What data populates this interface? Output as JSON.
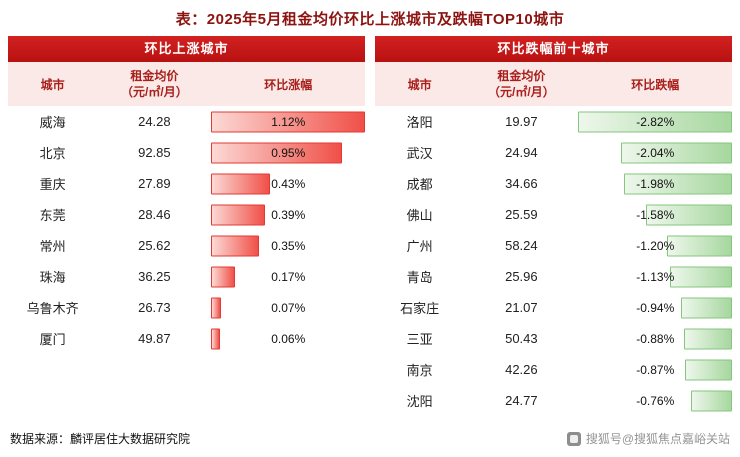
{
  "title": "表：2025年5月租金均价环比上涨城市及跌幅TOP10城市",
  "source": "数据来源：麟评居住大数据研究院",
  "footer_badge": "搜狐号@搜狐焦点嘉峪关站",
  "colors": {
    "title_color": "#8b1310",
    "band_red_top": "#d32121",
    "band_red_bottom": "#b81111",
    "header_pink": "#fbe9e7",
    "header_text": "#a8201c",
    "bar_red_light": "#fcd9d5",
    "bar_red": "#f05048",
    "bar_red_border": "#e23a32",
    "bar_green_light": "#eef7ec",
    "bar_green": "#a6d79e",
    "bar_green_border": "#86c57e"
  },
  "chart_data": [
    {
      "type": "table",
      "title": "环比上涨城市",
      "bar_direction": "positive",
      "columns": {
        "city": "城市",
        "price_line1": "租金均价",
        "price_line2": "（元/㎡/月）",
        "change": "环比涨幅"
      },
      "rows": [
        {
          "city": "威海",
          "price": "24.28",
          "change": "1.12%"
        },
        {
          "city": "北京",
          "price": "92.85",
          "change": "0.95%"
        },
        {
          "city": "重庆",
          "price": "27.89",
          "change": "0.43%"
        },
        {
          "city": "东莞",
          "price": "28.46",
          "change": "0.39%"
        },
        {
          "city": "常州",
          "price": "25.62",
          "change": "0.35%"
        },
        {
          "city": "珠海",
          "price": "36.25",
          "change": "0.17%"
        },
        {
          "city": "乌鲁木齐",
          "price": "26.73",
          "change": "0.07%"
        },
        {
          "city": "厦门",
          "price": "49.87",
          "change": "0.06%"
        }
      ]
    },
    {
      "type": "table",
      "title": "环比跌幅前十城市",
      "bar_direction": "negative",
      "columns": {
        "city": "城市",
        "price_line1": "租金均价",
        "price_line2": "（元/㎡/月）",
        "change": "环比跌幅"
      },
      "rows": [
        {
          "city": "洛阳",
          "price": "19.97",
          "change": "-2.82%"
        },
        {
          "city": "武汉",
          "price": "24.94",
          "change": "-2.04%"
        },
        {
          "city": "成都",
          "price": "34.66",
          "change": "-1.98%"
        },
        {
          "city": "佛山",
          "price": "25.59",
          "change": "-1.58%"
        },
        {
          "city": "广州",
          "price": "58.24",
          "change": "-1.20%"
        },
        {
          "city": "青岛",
          "price": "25.96",
          "change": "-1.13%"
        },
        {
          "city": "石家庄",
          "price": "21.07",
          "change": "-0.94%"
        },
        {
          "city": "三亚",
          "price": "50.43",
          "change": "-0.88%"
        },
        {
          "city": "南京",
          "price": "42.26",
          "change": "-0.87%"
        },
        {
          "city": "沈阳",
          "price": "24.77",
          "change": "-0.76%"
        }
      ]
    }
  ]
}
